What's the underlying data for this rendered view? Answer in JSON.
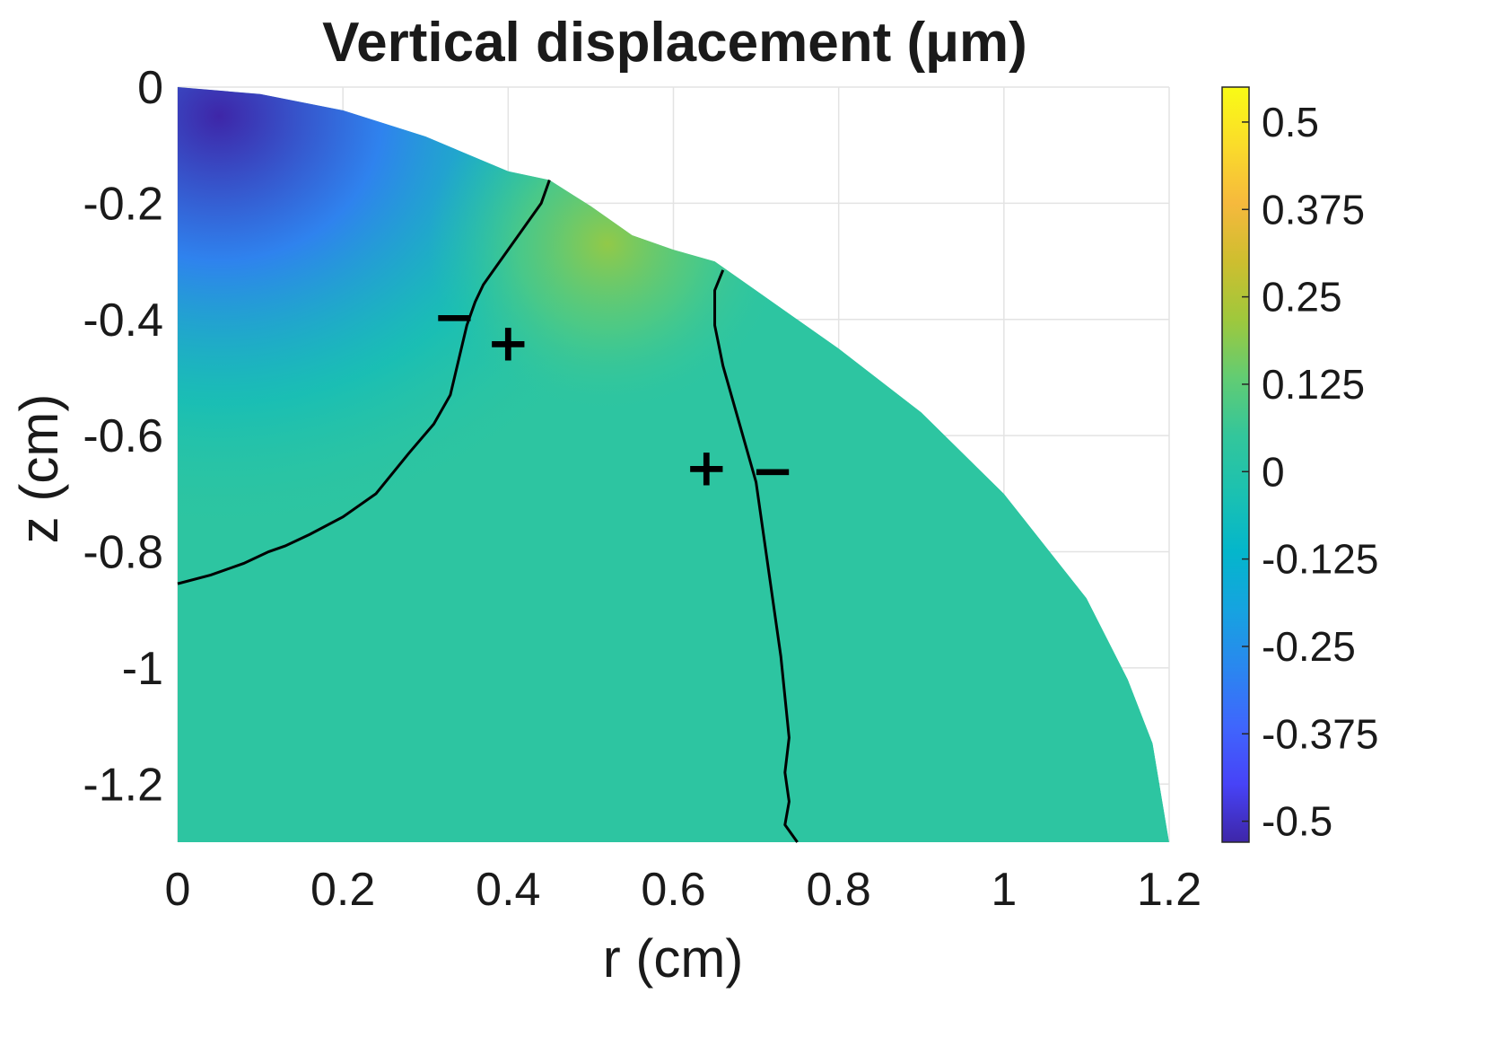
{
  "chart_data": {
    "type": "heatmap",
    "title": "Vertical  displacement  (μm)",
    "xlabel": "r (cm)",
    "ylabel": "z (cm)",
    "xlim": [
      0,
      1.2
    ],
    "ylim": [
      -1.3,
      0
    ],
    "x_ticks": [
      "0",
      "0.2",
      "0.4",
      "0.6",
      "0.8",
      "1",
      "1.2"
    ],
    "x_tick_values": [
      0,
      0.2,
      0.4,
      0.6,
      0.8,
      1.0,
      1.2
    ],
    "y_ticks": [
      "0",
      "-0.2",
      "-0.4",
      "-0.6",
      "-0.8",
      "-1",
      "-1.2"
    ],
    "y_tick_values": [
      0,
      -0.2,
      -0.4,
      -0.6,
      -0.8,
      -1.0,
      -1.2
    ],
    "grid": true,
    "colormap": "parula",
    "clim": [
      -0.53,
      0.55
    ],
    "colorbar_ticks": [
      "0.5",
      "0.375",
      "0.25",
      "0.125",
      "0",
      "-0.125",
      "-0.25",
      "-0.375",
      "-0.5"
    ],
    "colorbar_tick_values": [
      0.5,
      0.375,
      0.25,
      0.125,
      0,
      -0.125,
      -0.25,
      -0.375,
      -0.5
    ],
    "colormap_stops": [
      "#3e26a8",
      "#4743f7",
      "#3f66fd",
      "#2a87ef",
      "#16a3e0",
      "#04b6cb",
      "#1bc1b1",
      "#33c69b",
      "#62cc73",
      "#9fc83c",
      "#cebe2f",
      "#f6b93d",
      "#fadc2a",
      "#f9fb15"
    ],
    "domain_boundary": [
      [
        0.0,
        0.0
      ],
      [
        0.1,
        -0.012
      ],
      [
        0.2,
        -0.04
      ],
      [
        0.3,
        -0.085
      ],
      [
        0.4,
        -0.145
      ],
      [
        0.45,
        -0.16
      ],
      [
        0.5,
        -0.205
      ],
      [
        0.55,
        -0.255
      ],
      [
        0.6,
        -0.28
      ],
      [
        0.65,
        -0.3
      ],
      [
        0.7,
        -0.35
      ],
      [
        0.8,
        -0.45
      ],
      [
        0.9,
        -0.56
      ],
      [
        1.0,
        -0.7
      ],
      [
        1.1,
        -0.88
      ],
      [
        1.15,
        -1.02
      ],
      [
        1.18,
        -1.13
      ],
      [
        1.2,
        -1.3
      ],
      [
        0.0,
        -1.3
      ]
    ],
    "field_features": [
      {
        "kind": "minimum",
        "r": 0.05,
        "z": -0.05,
        "value": -0.53
      },
      {
        "kind": "maximum",
        "r": 0.52,
        "z": -0.27,
        "value": 0.2
      }
    ],
    "series": [
      {
        "name": "zero contour 1",
        "x": [
          0.45,
          0.44,
          0.42,
          0.4,
          0.385,
          0.37,
          0.36,
          0.35,
          0.34,
          0.33,
          0.31,
          0.28,
          0.24,
          0.2,
          0.16,
          0.13,
          0.11,
          0.08,
          0.04,
          0.0
        ],
        "y": [
          -0.16,
          -0.2,
          -0.24,
          -0.28,
          -0.31,
          -0.34,
          -0.37,
          -0.41,
          -0.47,
          -0.53,
          -0.58,
          -0.63,
          -0.7,
          -0.74,
          -0.77,
          -0.79,
          -0.8,
          -0.82,
          -0.84,
          -0.855
        ]
      },
      {
        "name": "zero contour 2",
        "x": [
          0.66,
          0.65,
          0.65,
          0.66,
          0.68,
          0.7,
          0.71,
          0.72,
          0.73,
          0.735,
          0.74,
          0.735,
          0.74,
          0.735,
          0.75
        ],
        "y": [
          -0.315,
          -0.35,
          -0.41,
          -0.48,
          -0.58,
          -0.68,
          -0.78,
          -0.88,
          -0.98,
          -1.05,
          -1.12,
          -1.18,
          -1.23,
          -1.27,
          -1.3
        ]
      }
    ],
    "annotations": [
      {
        "text": "−",
        "x": 0.335,
        "y": -0.395
      },
      {
        "text": "+",
        "x": 0.4,
        "y": -0.44
      },
      {
        "text": "+",
        "x": 0.64,
        "y": -0.655
      },
      {
        "text": "−",
        "x": 0.72,
        "y": -0.66
      }
    ]
  }
}
